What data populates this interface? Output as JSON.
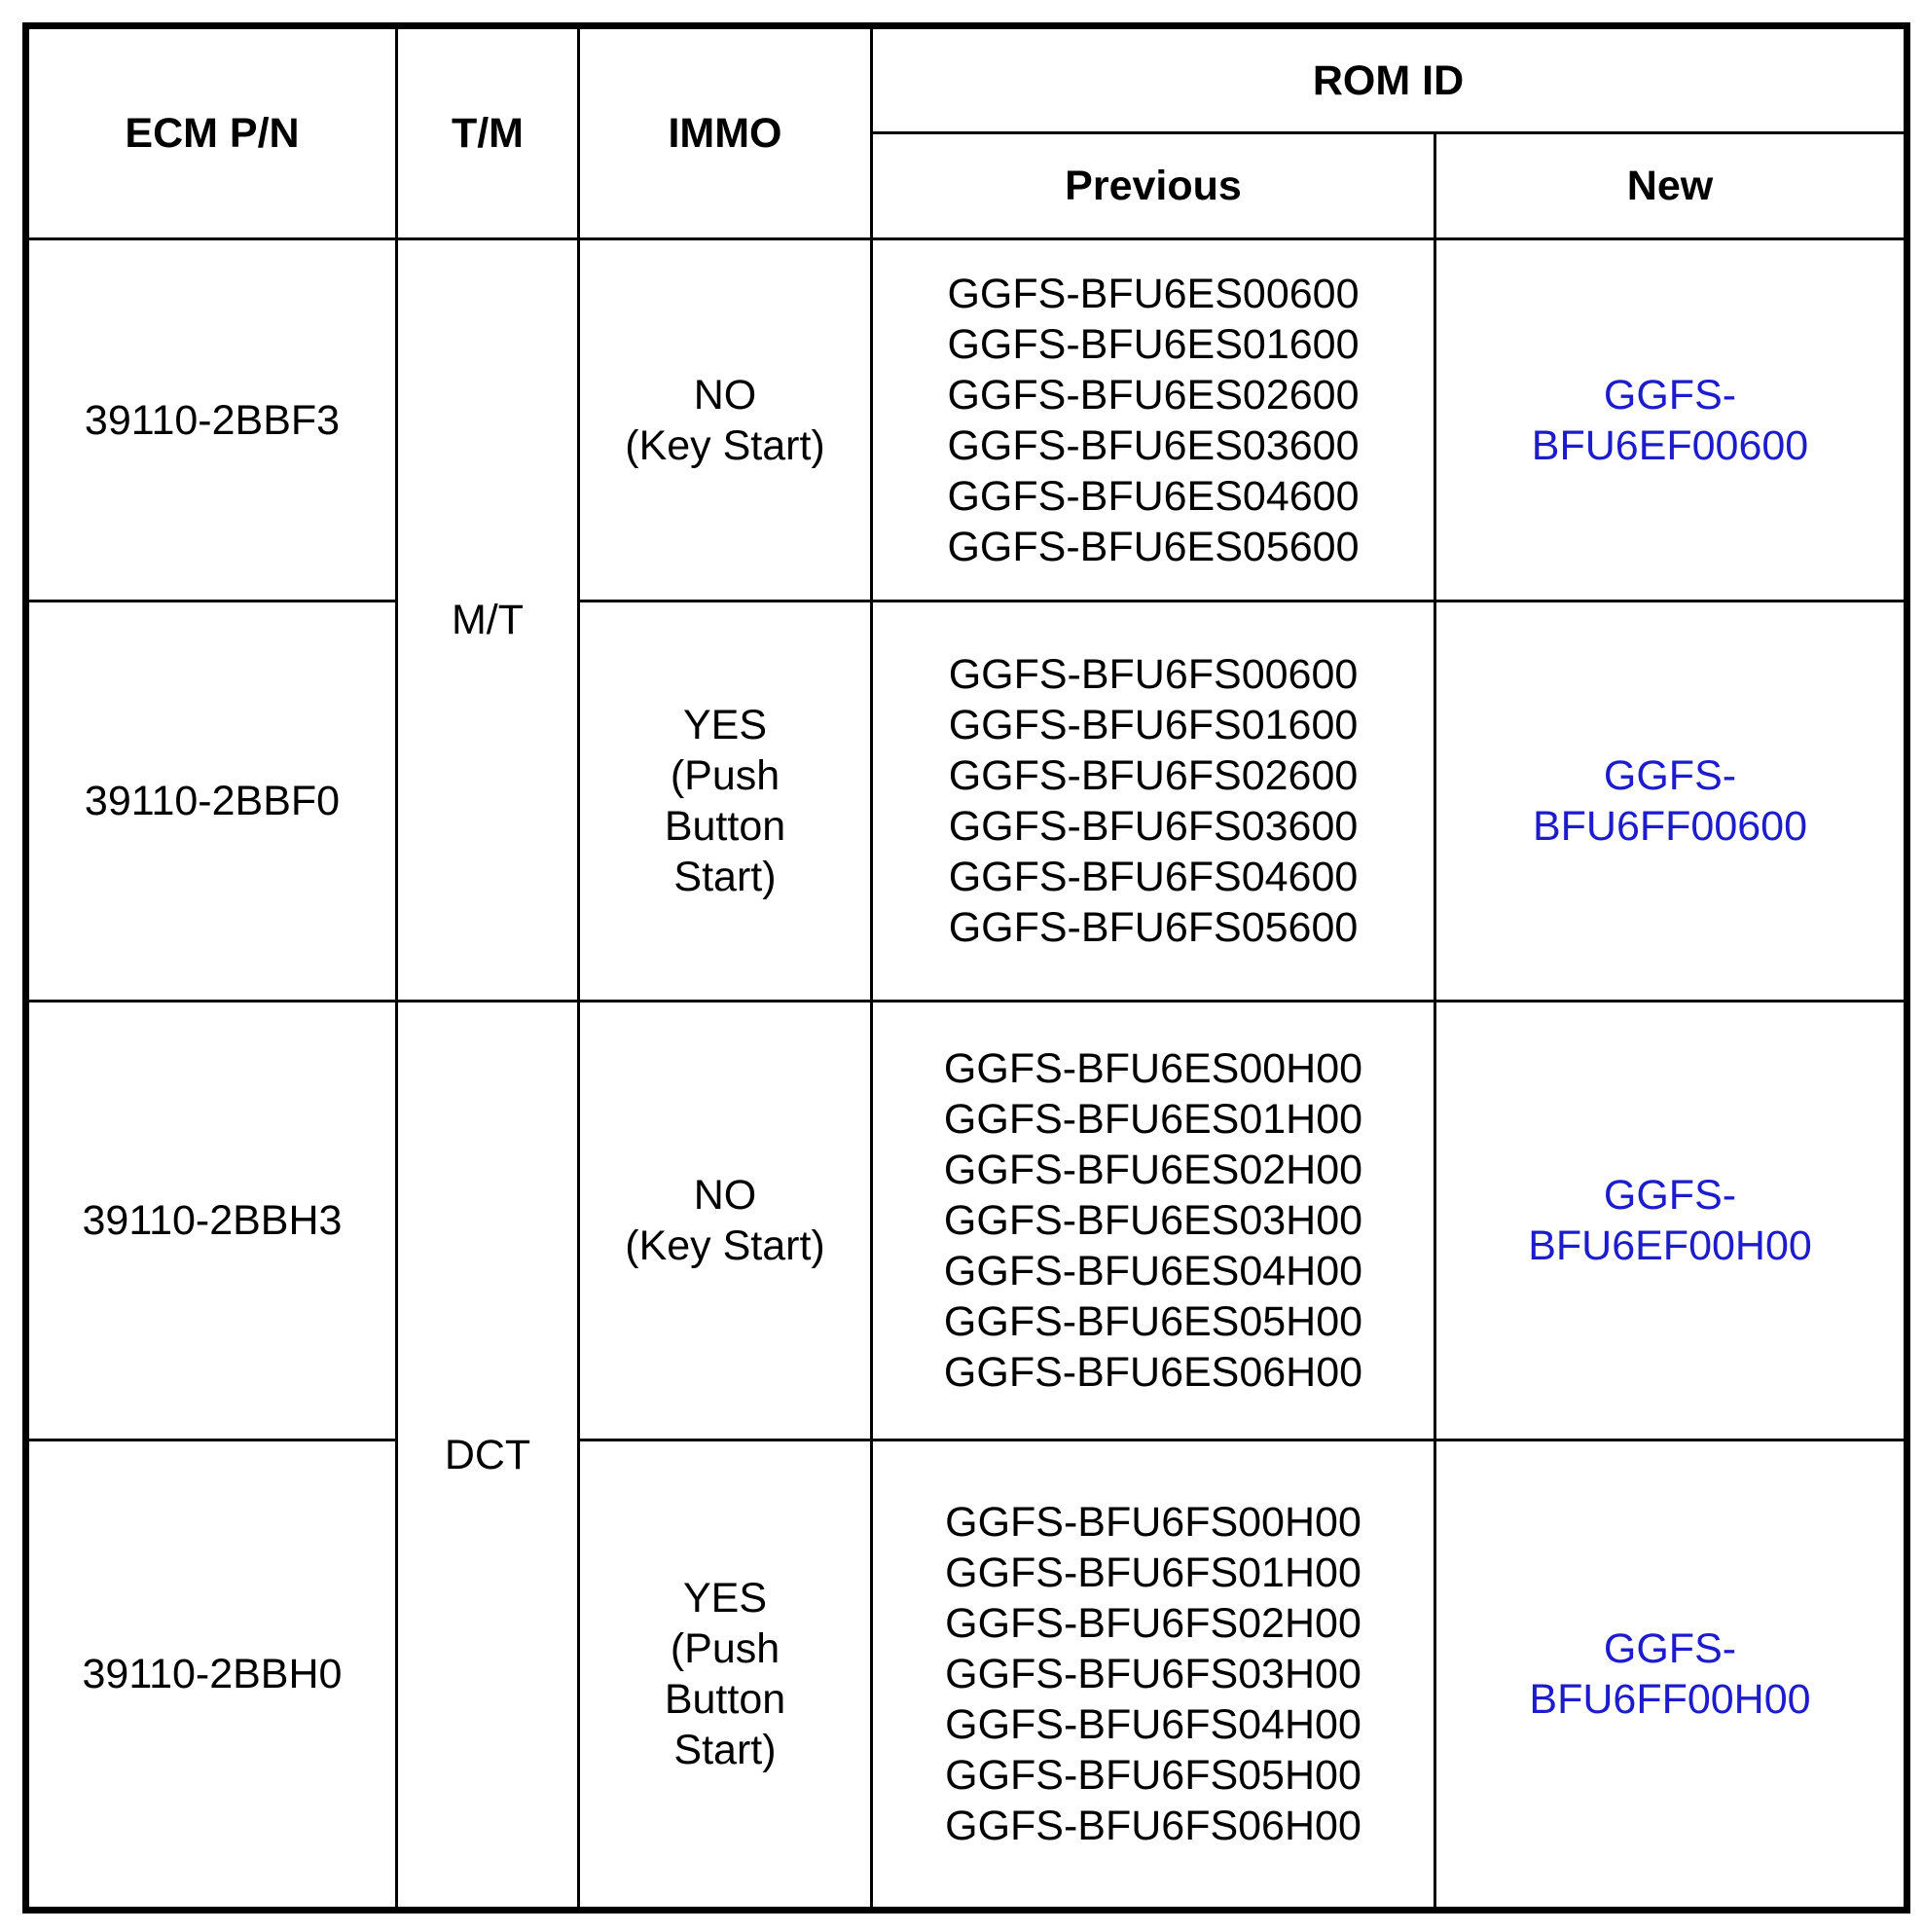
{
  "header": {
    "ecm_pn": "ECM P/N",
    "tm": "T/M",
    "immo": "IMMO",
    "rom_id": "ROM ID",
    "previous": "Previous",
    "new": "New"
  },
  "rows": [
    {
      "ecm_pn": "39110-2BBF3",
      "immo": [
        "NO",
        "(Key Start)"
      ],
      "previous": [
        "GGFS-BFU6ES00600",
        "GGFS-BFU6ES01600",
        "GGFS-BFU6ES02600",
        "GGFS-BFU6ES03600",
        "GGFS-BFU6ES04600",
        "GGFS-BFU6ES05600"
      ],
      "new": [
        "GGFS-",
        "BFU6EF00600"
      ]
    },
    {
      "ecm_pn": "39110-2BBF0",
      "immo": [
        "YES",
        "(Push",
        "Button",
        "Start)"
      ],
      "previous": [
        "GGFS-BFU6FS00600",
        "GGFS-BFU6FS01600",
        "GGFS-BFU6FS02600",
        "GGFS-BFU6FS03600",
        "GGFS-BFU6FS04600",
        "GGFS-BFU6FS05600"
      ],
      "new": [
        "GGFS-",
        "BFU6FF00600"
      ]
    },
    {
      "ecm_pn": "39110-2BBH3",
      "immo": [
        "NO",
        "(Key Start)"
      ],
      "previous": [
        "GGFS-BFU6ES00H00",
        "GGFS-BFU6ES01H00",
        "GGFS-BFU6ES02H00",
        "GGFS-BFU6ES03H00",
        "GGFS-BFU6ES04H00",
        "GGFS-BFU6ES05H00",
        "GGFS-BFU6ES06H00"
      ],
      "new": [
        "GGFS-",
        "BFU6EF00H00"
      ]
    },
    {
      "ecm_pn": "39110-2BBH0",
      "immo": [
        "YES",
        "(Push",
        "Button",
        "Start)"
      ],
      "previous": [
        "GGFS-BFU6FS00H00",
        "GGFS-BFU6FS01H00",
        "GGFS-BFU6FS02H00",
        "GGFS-BFU6FS03H00",
        "GGFS-BFU6FS04H00",
        "GGFS-BFU6FS05H00",
        "GGFS-BFU6FS06H00"
      ],
      "new": [
        "GGFS-",
        "BFU6FF00H00"
      ]
    }
  ],
  "tm_groups": [
    "M/T",
    "DCT"
  ],
  "colors": {
    "new_rom_id": "#1c1ccc",
    "border": "#000000"
  }
}
